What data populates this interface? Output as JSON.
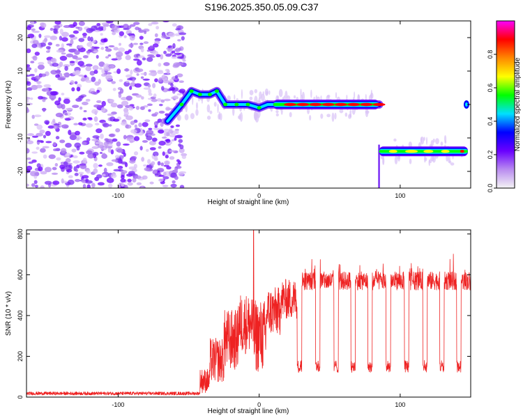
{
  "title": "S196.2025.350.05.09.C37",
  "chart_data": [
    {
      "type": "heatmap",
      "xlabel": "Height of straight line (km)",
      "ylabel": "Frequency (Hz)",
      "xlim": [
        -165,
        150
      ],
      "ylim": [
        -25,
        25
      ],
      "x_ticks": [
        -100,
        0,
        100
      ],
      "y_ticks": [
        -20,
        -10,
        0,
        10,
        20
      ],
      "grid": false,
      "colorbar": {
        "label": "Normalized spectral amplitude",
        "range": [
          0,
          1
        ],
        "ticks": [
          0.0,
          0.2,
          0.4,
          0.6,
          0.8
        ],
        "tick_labels": [
          "0.0",
          "0.2",
          "0.4",
          "0.6",
          "0.8"
        ],
        "colormap": [
          "#f4f4f4",
          "#b98cf0",
          "#6a00ff",
          "#0000ff",
          "#00e0ff",
          "#00ff00",
          "#ffff00",
          "#ff8800",
          "#ff0000",
          "#ff00ff"
        ]
      },
      "features": {
        "noise_region_x": [
          -165,
          -53
        ],
        "rising_segment": [
          [
            -65,
            -5
          ],
          [
            -55,
            0
          ],
          [
            -48,
            4
          ],
          [
            -42,
            3
          ],
          [
            -35,
            3
          ],
          [
            -30,
            4
          ],
          [
            -24,
            0
          ],
          [
            -16,
            0
          ],
          [
            -8,
            0
          ],
          [
            0,
            -1
          ],
          [
            6,
            0
          ],
          [
            12,
            0
          ],
          [
            85,
            0
          ]
        ],
        "main_tone": {
          "x": [
            10,
            85
          ],
          "freq": 0
        },
        "shifted_tone": {
          "x": [
            85,
            148
          ],
          "freq": -14
        },
        "isolated_blob": {
          "x": 147,
          "freq": 0
        }
      }
    },
    {
      "type": "line",
      "xlabel": "Height of straight line (km)",
      "ylabel": "SNR (10 * v/v)",
      "xlim": [
        -165,
        150
      ],
      "ylim": [
        0,
        820
      ],
      "x_ticks": [
        -100,
        0,
        100
      ],
      "y_ticks": [
        0,
        200,
        400,
        600,
        800
      ],
      "grid": false,
      "color": "#ee2222",
      "segments": [
        {
          "x": [
            -165,
            -42
          ],
          "mean": 18,
          "noise": 8
        },
        {
          "x": [
            -42,
            -35
          ],
          "mean": 80,
          "noise": 60
        },
        {
          "x": [
            -35,
            -25
          ],
          "mean": 180,
          "noise": 110
        },
        {
          "x": [
            -25,
            -15
          ],
          "mean": 280,
          "noise": 150
        },
        {
          "x": [
            -15,
            -5
          ],
          "mean": 360,
          "noise": 150
        },
        {
          "x": [
            -5,
            5
          ],
          "mean": 300,
          "noise": 180
        },
        {
          "x": [
            5,
            15
          ],
          "mean": 420,
          "noise": 120
        },
        {
          "x": [
            15,
            28
          ],
          "mean": 480,
          "noise": 100
        },
        {
          "x": [
            28,
            150
          ],
          "mean": 570,
          "noise": 45
        }
      ],
      "spike": {
        "x": -4,
        "y": 820
      },
      "dropouts_x": [
        27,
        40,
        53,
        65,
        77,
        90,
        103,
        116,
        128,
        140
      ],
      "dropout_level": 140
    }
  ]
}
